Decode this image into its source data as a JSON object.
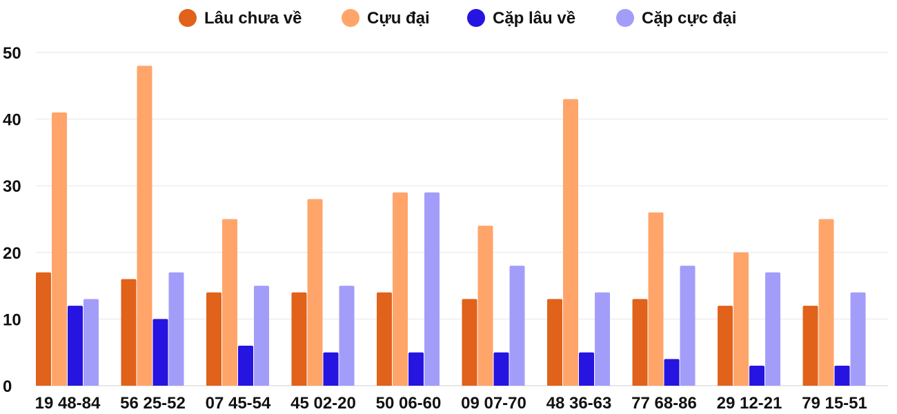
{
  "chart_data": {
    "type": "bar",
    "title": "",
    "xlabel": "",
    "ylabel": "",
    "ylim": [
      0,
      50
    ],
    "yticks": [
      0,
      10,
      20,
      30,
      40,
      50
    ],
    "grid": true,
    "legend_position": "top-center",
    "categories": [
      "19 48-84",
      "56 25-52",
      "07 45-54",
      "45 02-20",
      "50 06-60",
      "09 07-70",
      "48 36-63",
      "77 68-86",
      "29 12-21",
      "79 15-51"
    ],
    "series": [
      {
        "name": "Lâu chưa về",
        "color": "#e0621b",
        "values": [
          17,
          16,
          14,
          14,
          14,
          13,
          13,
          13,
          12,
          12
        ]
      },
      {
        "name": "Cựu đại",
        "color": "#ffa56a",
        "values": [
          41,
          48,
          25,
          28,
          29,
          24,
          43,
          26,
          20,
          25
        ]
      },
      {
        "name": "Cặp lâu về",
        "color": "#2614e0",
        "values": [
          12,
          10,
          6,
          5,
          5,
          5,
          5,
          4,
          3,
          3
        ]
      },
      {
        "name": "Cặp cực đại",
        "color": "#a39dfa",
        "values": [
          13,
          17,
          15,
          15,
          29,
          18,
          14,
          18,
          17,
          14
        ]
      }
    ]
  }
}
